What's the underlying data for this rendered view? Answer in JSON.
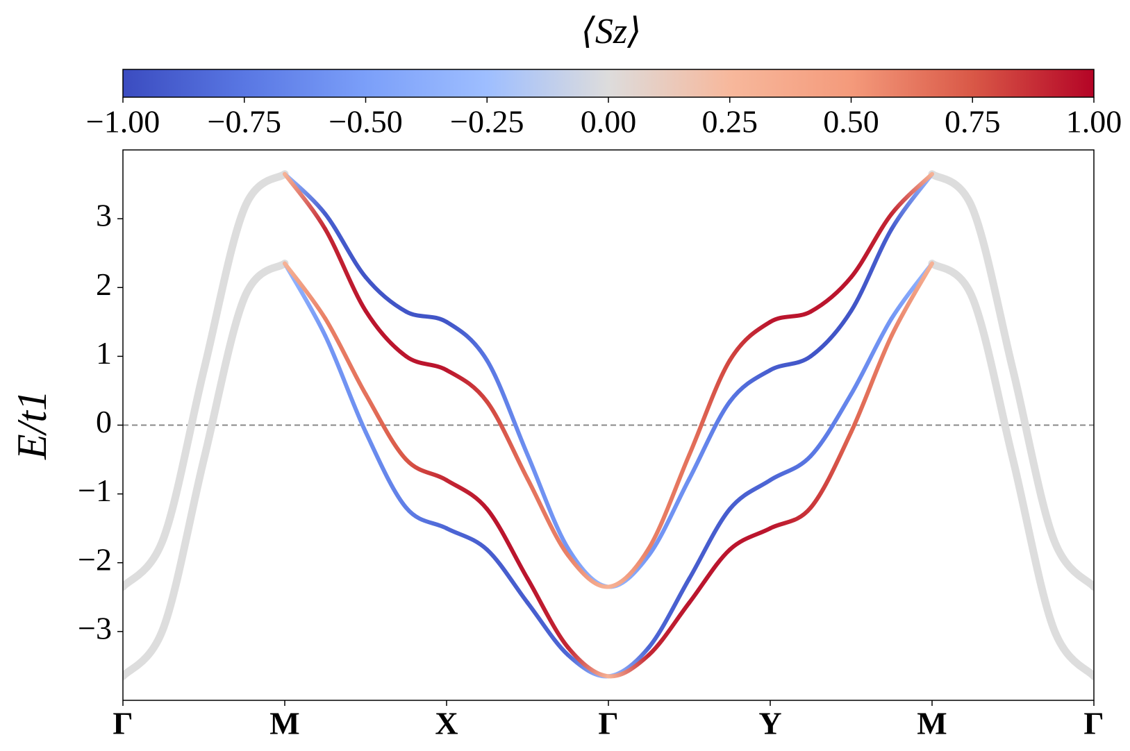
{
  "chart_data": {
    "type": "line",
    "xlabel": null,
    "ylabel": "E/t1",
    "xlim": [
      0,
      6
    ],
    "ylim": [
      -4,
      4
    ],
    "xticks": [
      {
        "value": 0,
        "label": "Γ"
      },
      {
        "value": 1,
        "label": "M"
      },
      {
        "value": 2,
        "label": "X"
      },
      {
        "value": 3,
        "label": "Γ"
      },
      {
        "value": 4,
        "label": "Y"
      },
      {
        "value": 5,
        "label": "M"
      },
      {
        "value": 6,
        "label": "Γ"
      }
    ],
    "yticks": [
      {
        "value": -3,
        "label": "−3"
      },
      {
        "value": -2,
        "label": "−2"
      },
      {
        "value": -1,
        "label": "−1"
      },
      0,
      1,
      2,
      3
    ],
    "reference_line": 0,
    "colormap": [
      "#3b4cc0",
      "#5977e3",
      "#7b9ff9",
      "#9ebeff",
      "#dddcdc",
      "#f7b89c",
      "#f49a7b",
      "#d95847",
      "#b40426"
    ],
    "colorbar": {
      "label": "⟨Sz⟩",
      "lim": [
        -1,
        1
      ],
      "ticks": [
        {
          "value": -1,
          "label": "−1.00"
        },
        {
          "value": -0.75,
          "label": "−0.75"
        },
        {
          "value": -0.5,
          "label": "−0.50"
        },
        {
          "value": -0.25,
          "label": "−0.25"
        },
        {
          "value": 0,
          "label": "0.00"
        },
        {
          "value": 0.25,
          "label": "0.25"
        },
        {
          "value": 0.5,
          "label": "0.50"
        },
        {
          "value": 0.75,
          "label": "0.75"
        },
        {
          "value": 1,
          "label": "1.00"
        }
      ]
    },
    "series": [
      {
        "color": "#dddddd",
        "x": [
          0,
          0.25,
          0.5,
          0.75,
          1
        ],
        "values": [
          -2.35,
          -1.65,
          0.8,
          3.15,
          3.65
        ]
      },
      {
        "color": "#dddddd",
        "x": [
          0,
          0.25,
          0.5,
          0.75,
          1
        ],
        "values": [
          -3.65,
          -2.95,
          -0.5,
          1.85,
          2.35
        ]
      },
      {
        "color": "#dddddd",
        "x": [
          5,
          5.25,
          5.5,
          5.75,
          6
        ],
        "values": [
          3.65,
          3.15,
          0.8,
          -1.65,
          -2.35
        ]
      },
      {
        "color": "#dddddd",
        "x": [
          5,
          5.25,
          5.5,
          5.75,
          6
        ],
        "values": [
          2.35,
          1.85,
          -0.5,
          -2.95,
          -3.65
        ]
      },
      {
        "x": [
          1,
          1.25,
          1.5,
          1.75,
          2,
          2.25,
          2.5,
          2.75,
          3,
          3.25,
          3.5,
          3.75,
          4,
          4.25,
          4.5,
          4.75,
          5
        ],
        "values": [
          3.65,
          3.07,
          2.15,
          1.65,
          1.5,
          0.94,
          -0.43,
          -1.79,
          -2.35,
          -1.89,
          -0.78,
          0.34,
          0.8,
          1.0,
          1.66,
          2.85,
          3.65
        ],
        "sz": [
          -0.3,
          -0.9,
          -0.95,
          -0.95,
          -0.95,
          -0.75,
          -0.6,
          -0.55,
          -0.3,
          -0.55,
          -0.6,
          -0.75,
          -0.9,
          -0.95,
          -0.95,
          -0.9,
          -0.3
        ]
      },
      {
        "x": [
          1,
          1.25,
          1.5,
          1.75,
          2,
          2.25,
          2.5,
          2.75,
          3,
          3.25,
          3.5,
          3.75,
          4,
          4.25,
          4.5,
          4.75,
          5
        ],
        "values": [
          3.65,
          2.85,
          1.66,
          1.0,
          0.8,
          0.34,
          -0.78,
          -1.89,
          -2.35,
          -1.79,
          -0.43,
          0.94,
          1.5,
          1.65,
          2.15,
          3.07,
          3.65
        ],
        "sz": [
          0.3,
          0.9,
          0.95,
          0.95,
          0.95,
          0.8,
          0.65,
          0.6,
          0.3,
          0.6,
          0.65,
          0.8,
          0.95,
          0.95,
          0.95,
          0.9,
          0.3
        ]
      },
      {
        "x": [
          1,
          1.25,
          1.5,
          1.75,
          2,
          2.25,
          2.5,
          2.75,
          3,
          3.25,
          3.5,
          3.75,
          4,
          4.25,
          4.5,
          4.75,
          5
        ],
        "values": [
          2.35,
          1.3,
          -0.1,
          -1.2,
          -1.5,
          -1.81,
          -2.58,
          -3.34,
          -3.65,
          -3.23,
          -2.23,
          -1.22,
          -0.8,
          -0.45,
          0.45,
          1.55,
          2.35
        ],
        "sz": [
          -0.3,
          -0.55,
          -0.6,
          -0.7,
          -0.85,
          -0.9,
          -0.9,
          -0.85,
          -0.3,
          -0.85,
          -0.9,
          -0.9,
          -0.85,
          -0.75,
          -0.65,
          -0.55,
          -0.3
        ]
      },
      {
        "x": [
          1,
          1.25,
          1.5,
          1.75,
          2,
          2.25,
          2.5,
          2.75,
          3,
          3.25,
          3.5,
          3.75,
          4,
          4.25,
          4.5,
          4.75,
          5
        ],
        "values": [
          2.35,
          1.55,
          0.45,
          -0.5,
          -0.8,
          -1.22,
          -2.23,
          -3.23,
          -3.65,
          -3.34,
          -2.58,
          -1.81,
          -1.5,
          -1.2,
          -0.1,
          1.3,
          2.35
        ],
        "sz": [
          0.3,
          0.6,
          0.65,
          0.75,
          0.9,
          0.95,
          0.95,
          0.9,
          0.3,
          0.9,
          0.95,
          0.95,
          0.95,
          0.85,
          0.7,
          0.6,
          0.3
        ]
      }
    ]
  }
}
